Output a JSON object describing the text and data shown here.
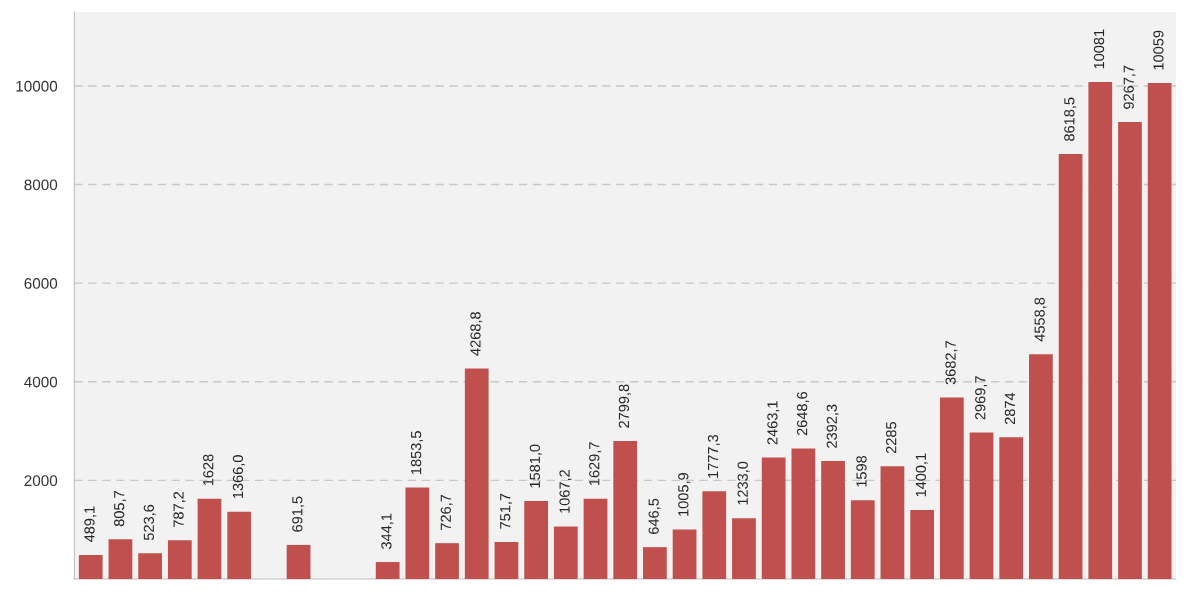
{
  "chart_data": {
    "type": "bar",
    "categories": [
      null,
      null,
      null,
      null,
      null,
      null,
      null,
      null,
      null,
      null,
      null,
      null,
      null,
      null,
      null,
      null,
      null,
      null,
      null,
      null,
      null,
      null,
      null,
      null,
      null,
      null,
      null,
      null,
      null,
      null,
      null,
      null,
      null,
      null,
      null,
      null,
      null
    ],
    "values": [
      489.1,
      805.7,
      523.6,
      787.2,
      1628,
      1366.0,
      null,
      691.5,
      null,
      null,
      344.1,
      1853.5,
      726.7,
      4268.8,
      751.7,
      1581.0,
      1067.2,
      1629.7,
      2799.8,
      646.5,
      1005.9,
      1777.3,
      1233.0,
      2463.1,
      2648.6,
      2392.3,
      1598,
      2285,
      1400.1,
      3682.7,
      2969.7,
      2874,
      4558.8,
      8618.5,
      10081,
      9267.7,
      10059
    ],
    "value_labels": [
      "489,1",
      "805,7",
      "523,6",
      "787,2",
      "1628",
      "1366,0",
      null,
      "691,5",
      null,
      null,
      "344,1",
      "1853,5",
      "726,7",
      "4268,8",
      "751,7",
      "1581,0",
      "1067,2",
      "1629,7",
      "2799,8",
      "646,5",
      "1005,9",
      "1777,3",
      "1233,0",
      "2463,1",
      "2648,6",
      "2392,3",
      "1598",
      "2285",
      "1400,1",
      "3682,7",
      "2969,7",
      "2874",
      "4558,8",
      "8618,5",
      "10081",
      "9267,7",
      "10059"
    ],
    "color": "#c0504d",
    "ylim": [
      0,
      11500
    ],
    "yticks": [
      2000,
      4000,
      6000,
      8000,
      10000
    ],
    "grid": "y",
    "tick_labels": "y"
  }
}
